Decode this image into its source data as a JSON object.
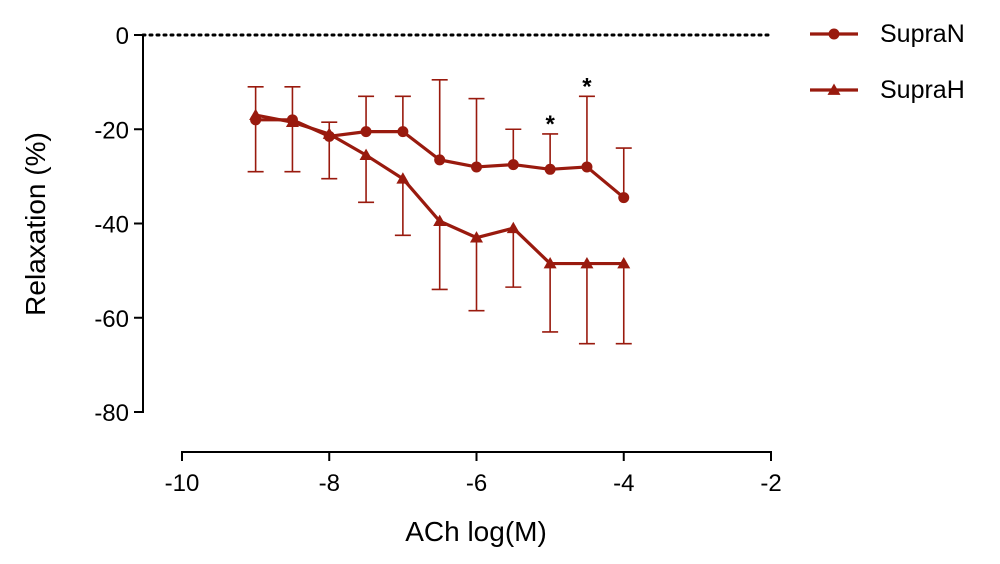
{
  "chart_data": {
    "type": "line",
    "xlabel": "ACh log(M)",
    "ylabel": "Relaxation (%)",
    "xlim": [
      -10,
      -2
    ],
    "ylim": [
      -80,
      0
    ],
    "x_ticks": [
      -10,
      -8,
      -6,
      -4,
      -2
    ],
    "x_tick_labels": [
      "-10",
      "-8",
      "-6",
      "-4",
      "-2"
    ],
    "y_ticks": [
      0,
      -20,
      -40,
      -60,
      -80
    ],
    "y_tick_labels": [
      "0",
      "-20",
      "-40",
      "-60",
      "-80"
    ],
    "reference_line": {
      "y": 0,
      "style": "dotted"
    },
    "legend_position": "top-right",
    "color": "#991a0e",
    "series": [
      {
        "name": "SupraN",
        "marker": "circle",
        "x": [
          -9,
          -8.5,
          -8,
          -7.5,
          -7,
          -6.5,
          -6,
          -5.5,
          -5,
          -4.5,
          -4
        ],
        "y": [
          -18,
          -18,
          -21.5,
          -20.5,
          -20.5,
          -26.5,
          -28,
          -27.5,
          -28.5,
          -28,
          -34.5
        ],
        "error_upper": [
          -11,
          -11,
          -18.5,
          -13,
          -13,
          -9.5,
          -13.5,
          -20,
          -21,
          -13,
          -24
        ]
      },
      {
        "name": "SupraH",
        "marker": "triangle",
        "x": [
          -9,
          -8.5,
          -8,
          -7.5,
          -7,
          -6.5,
          -6,
          -5.5,
          -5,
          -4.5,
          -4
        ],
        "y": [
          -17,
          -18.5,
          -21,
          -25.5,
          -30.5,
          -39.5,
          -43,
          -41,
          -48.5,
          -48.5,
          -48.5
        ],
        "error_lower": [
          -29,
          -29,
          -30.5,
          -35.5,
          -42.5,
          -54,
          -58.5,
          -53.5,
          -63,
          -65.5,
          -65.5
        ]
      }
    ],
    "annotations": [
      {
        "text": "*",
        "x": -5,
        "y": -18.5
      },
      {
        "text": "*",
        "x": -4.5,
        "y": -10.5
      }
    ]
  }
}
